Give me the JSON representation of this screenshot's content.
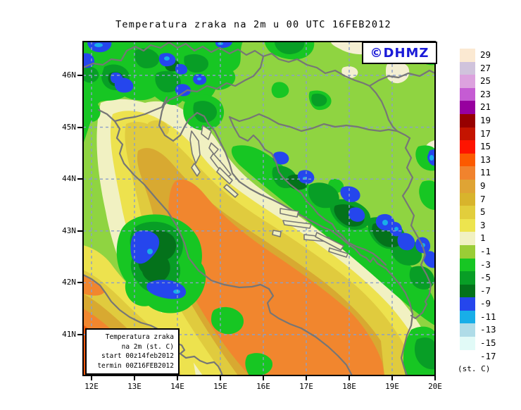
{
  "title": "Temperatura zraka na 2m u 00 UTC 16FEB2012",
  "watermark": {
    "text": "©DHMZ",
    "color": "#1A1AD8"
  },
  "info_box": {
    "lines": [
      "Temperatura zraka",
      "na 2m (st. C)",
      "start 00z14feb2012",
      "termin 00Z16FEB2012"
    ]
  },
  "colorbar": {
    "unit": "(st. C)",
    "entries": [
      {
        "value": "29",
        "color": "#FBE9D2"
      },
      {
        "value": "27",
        "color": "#D0C3DC"
      },
      {
        "value": "25",
        "color": "#DCA2DE"
      },
      {
        "value": "23",
        "color": "#C55CD3"
      },
      {
        "value": "21",
        "color": "#97009F"
      },
      {
        "value": "19",
        "color": "#970000"
      },
      {
        "value": "17",
        "color": "#C41400"
      },
      {
        "value": "15",
        "color": "#FE1400"
      },
      {
        "value": "13",
        "color": "#FC5A00"
      },
      {
        "value": "11",
        "color": "#F1832D"
      },
      {
        "value": "9",
        "color": "#DFA434"
      },
      {
        "value": "7",
        "color": "#D8B42C"
      },
      {
        "value": "5",
        "color": "#E2CE3C"
      },
      {
        "value": "3",
        "color": "#EDE44E"
      },
      {
        "value": "1",
        "color": "#F1F1C2"
      },
      {
        "value": "-1",
        "color": "#9ACD36"
      },
      {
        "value": "-3",
        "color": "#17C623"
      },
      {
        "value": "-5",
        "color": "#089E26"
      },
      {
        "value": "-7",
        "color": "#04721B"
      },
      {
        "value": "-9",
        "color": "#2546ED"
      },
      {
        "value": "-11",
        "color": "#18AEE8"
      },
      {
        "value": "-13",
        "color": "#AFDCE8"
      },
      {
        "value": "-15",
        "color": "#E1FAF7"
      },
      {
        "value": "-17",
        "color": "#FFFFFF"
      }
    ]
  },
  "axes": {
    "x": [
      "12E",
      "13E",
      "14E",
      "15E",
      "16E",
      "17E",
      "18E",
      "19E",
      "20E"
    ],
    "y": [
      "46N",
      "45N",
      "44N",
      "43N",
      "42N",
      "41N"
    ]
  },
  "map_palette": {
    "land_base_green": "#8FD441",
    "sea_warm_orange": "#F1862E",
    "coastline_grey": "#767676",
    "gridline_blue": "#8B9FC9"
  }
}
